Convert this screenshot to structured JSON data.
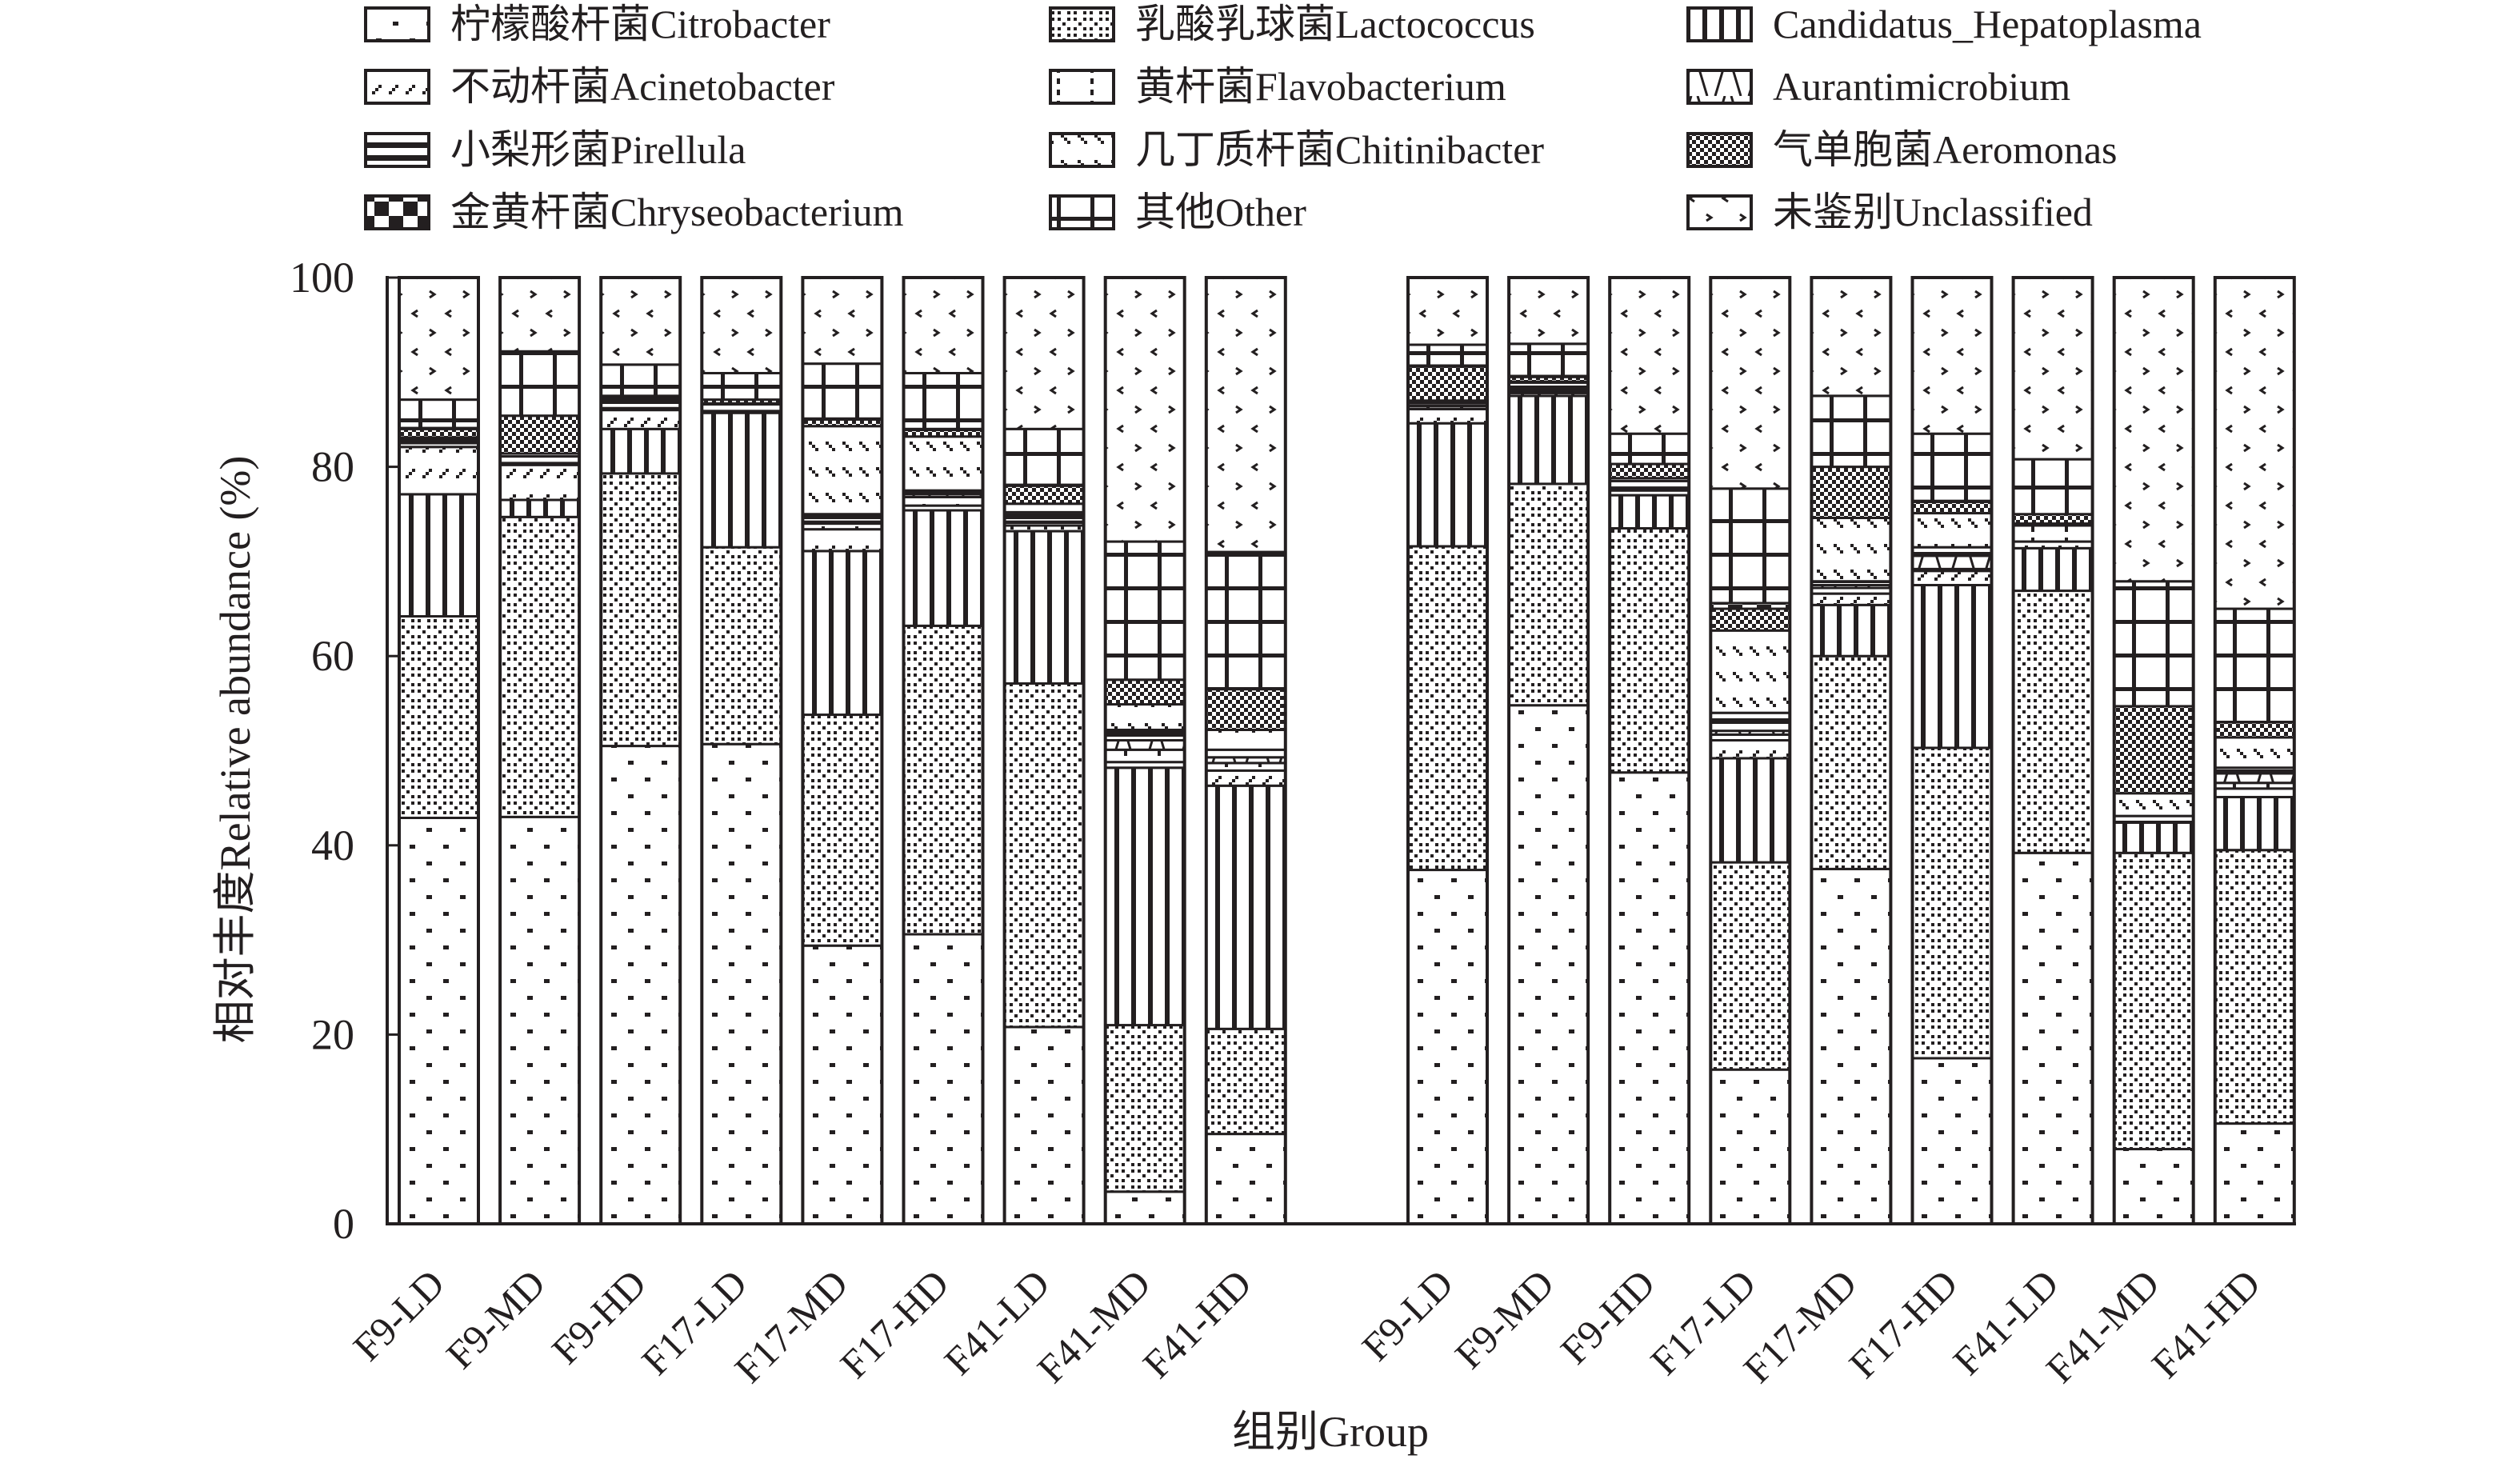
{
  "chart_data": {
    "type": "bar",
    "stacked": true,
    "title": "",
    "xlabel": "组别Group",
    "ylabel": "相对丰度Relative abundance (%)",
    "ylim": [
      0,
      100
    ],
    "yticks": [
      0,
      20,
      40,
      60,
      80,
      100
    ],
    "grid": false,
    "legend_position": "top",
    "group_sizes": [
      9,
      9
    ],
    "categories": [
      "F9-LD",
      "F9-MD",
      "F9-HD",
      "F17-LD",
      "F17-MD",
      "F17-HD",
      "F41-LD",
      "F41-MD",
      "F41-HD",
      "F9-LD",
      "F9-MD",
      "F9-HD",
      "F17-LD",
      "F17-MD",
      "F17-HD",
      "F41-LD",
      "F41-MD",
      "F41-HD"
    ],
    "series": [
      {
        "name": "柠檬酸杆菌Citrobacter",
        "pattern": "sparse-dots",
        "values": [
          42.9,
          43.0,
          50.5,
          50.7,
          29.4,
          30.6,
          20.8,
          3.4,
          9.5,
          37.4,
          54.8,
          47.7,
          16.3,
          37.5,
          17.5,
          39.2,
          7.9,
          10.6
        ]
      },
      {
        "name": "乳酸乳球菌Lactococcus",
        "pattern": "cross-checker",
        "values": [
          21.3,
          31.7,
          28.8,
          20.8,
          24.4,
          32.6,
          36.3,
          17.6,
          11.1,
          34.2,
          23.4,
          25.8,
          21.9,
          22.5,
          32.8,
          27.7,
          31.3,
          28.9
        ]
      },
      {
        "name": "Candidatus_Hepatoplasma",
        "pattern": "vertical-lines",
        "values": [
          12.9,
          1.8,
          4.7,
          14.2,
          17.3,
          12.2,
          16.1,
          27.2,
          25.7,
          13.0,
          9.3,
          3.5,
          11.0,
          5.4,
          17.2,
          4.5,
          3.2,
          5.6
        ]
      },
      {
        "name": "不动杆菌Acinetobacter",
        "pattern": "diagonal-dashes",
        "values": [
          5.0,
          3.7,
          2.0,
          0.1,
          2.3,
          0.5,
          0.6,
          0.6,
          1.6,
          1.5,
          0.3,
          0.5,
          1.9,
          1.2,
          1.5,
          0.7,
          0.0,
          0.9
        ]
      },
      {
        "name": "黄杆菌Flavobacterium",
        "pattern": "dotted-vertical",
        "values": [
          0.4,
          0.1,
          0.1,
          0.1,
          0.6,
          0.9,
          0.3,
          1.3,
          0.8,
          0.3,
          0.2,
          0.2,
          0.6,
          0.6,
          0.2,
          1.7,
          0.0,
          0.6
        ]
      },
      {
        "name": "Aurantimicrobium",
        "pattern": "zigzag",
        "values": [
          0.1,
          0.1,
          0.1,
          0.0,
          0.2,
          0.3,
          0.1,
          1.0,
          0.6,
          0.1,
          0.1,
          0.1,
          0.4,
          0.3,
          1.4,
          0.1,
          0.0,
          1.0
        ]
      },
      {
        "name": "小梨形菌Pirellula",
        "pattern": "horizontal-bands",
        "values": [
          0.4,
          0.7,
          1.0,
          0.7,
          0.8,
          0.4,
          1.0,
          1.1,
          0.8,
          0.4,
          0.8,
          0.7,
          1.9,
          0.4,
          0.9,
          0.1,
          0.7,
          0.6
        ]
      },
      {
        "name": "几丁质杆菌Chitinibacter",
        "pattern": "backslash-dashes",
        "values": [
          0.1,
          0.3,
          0.1,
          0.1,
          9.3,
          5.7,
          0.9,
          2.7,
          2.1,
          0.1,
          0.1,
          0.3,
          8.7,
          6.7,
          3.6,
          0.0,
          2.4,
          3.2
        ]
      },
      {
        "name": "气单胞菌Aeromonas",
        "pattern": "dense-checker",
        "values": [
          0.9,
          4.0,
          0.2,
          0.4,
          0.7,
          0.7,
          1.9,
          2.6,
          4.3,
          3.6,
          0.5,
          1.5,
          2.3,
          5.4,
          1.2,
          1.0,
          9.2,
          1.6
        ]
      },
      {
        "name": "金黄杆菌Chryseobacterium",
        "pattern": "large-checker",
        "values": [
          0.1,
          0.0,
          0.0,
          0.0,
          0.1,
          0.1,
          0.1,
          0.0,
          0.0,
          0.1,
          0.1,
          0.0,
          0.6,
          0.0,
          0.1,
          0.0,
          0.0,
          0.0
        ]
      },
      {
        "name": "其他Other",
        "pattern": "grid",
        "values": [
          3.0,
          6.8,
          3.3,
          2.8,
          5.8,
          5.9,
          5.9,
          14.6,
          14.5,
          2.2,
          3.4,
          3.2,
          12.1,
          7.5,
          7.1,
          5.8,
          13.2,
          12.0
        ]
      },
      {
        "name": "未鉴别Unclassified",
        "pattern": "scattered-marks",
        "values": [
          12.9,
          7.8,
          9.2,
          10.1,
          9.1,
          10.1,
          16.0,
          27.9,
          29.0,
          7.1,
          7.0,
          16.5,
          22.3,
          12.5,
          16.5,
          19.2,
          32.1,
          35.0
        ]
      }
    ]
  }
}
